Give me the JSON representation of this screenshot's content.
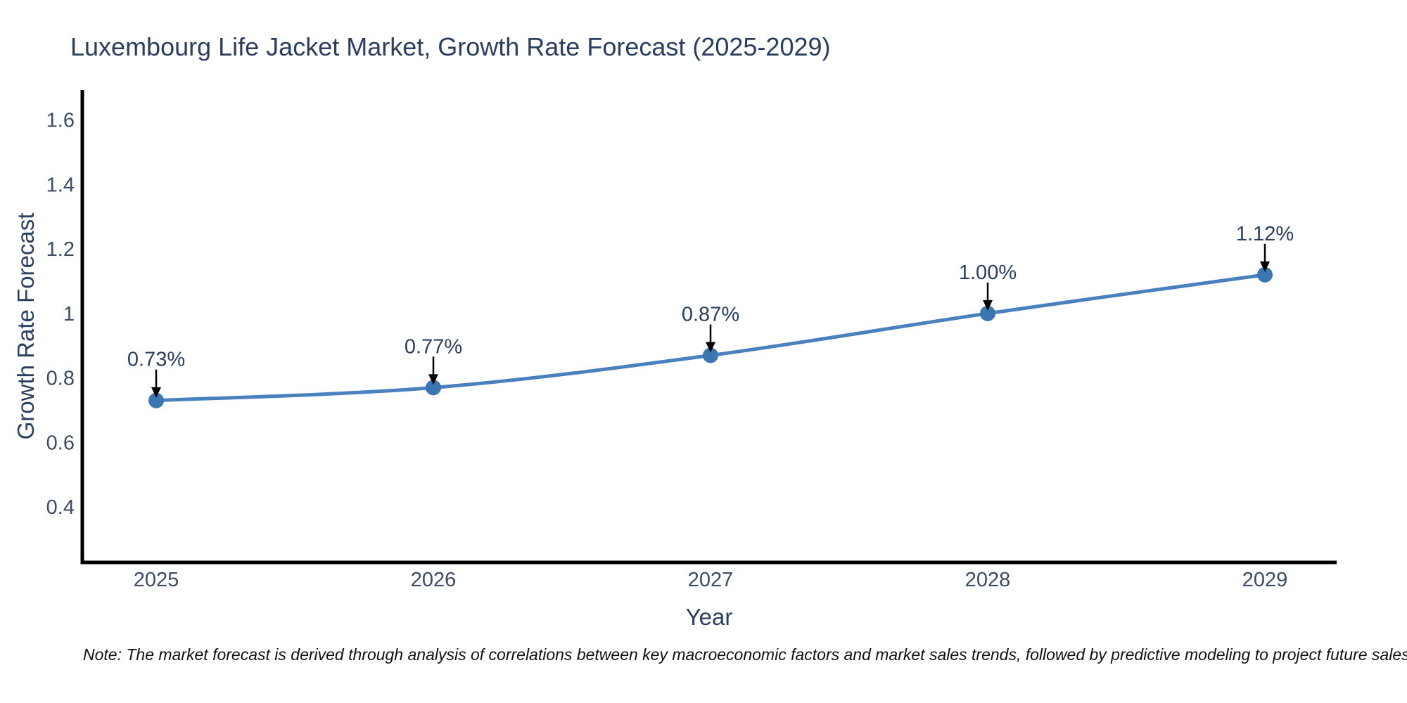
{
  "page": {
    "title": "Luxembourg Life Jacket Market, Growth Rate Forecast (2025-2029)"
  },
  "chart_data": {
    "type": "line",
    "title": "Luxembourg Life Jacket Market, Growth Rate Forecast (2025-2029)",
    "x": [
      "2025",
      "2026",
      "2027",
      "2028",
      "2029"
    ],
    "series": [
      {
        "name": "Growth Rate Forecast",
        "values": [
          0.73,
          0.77,
          0.87,
          1.0,
          1.12
        ]
      }
    ],
    "point_labels": [
      "0.73%",
      "0.77%",
      "0.87%",
      "1.00%",
      "1.12%"
    ],
    "xlabel": "Year",
    "ylabel": "Growth Rate Forecast",
    "yticks": [
      0.4,
      0.6,
      0.8,
      1,
      1.2,
      1.4,
      1.6
    ],
    "ytick_labels": [
      "0.4",
      "0.6",
      "0.8",
      "1",
      "1.2",
      "1.4",
      "1.6"
    ],
    "ylim": [
      0.228,
      1.693
    ],
    "grid": false,
    "legend": "none",
    "line_color": "#4881bd",
    "marker_color": "#3a76b0",
    "axis_color": "#000000",
    "arrow_color": "#000000"
  },
  "note": {
    "text": "Note: The market forecast is derived through analysis of correlations between key macroeconomic factors and market sales trends, followed by predictive modeling to project future sales."
  }
}
